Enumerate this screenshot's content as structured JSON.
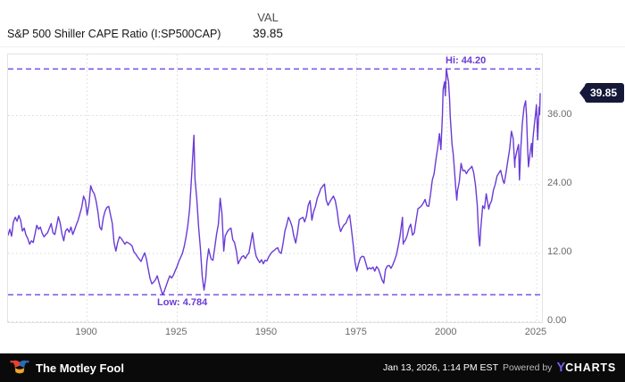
{
  "header": {
    "val_column_label": "VAL",
    "series_name": "S&P 500 Shiller CAPE Ratio (I:SP500CAP)",
    "current_value": "39.85"
  },
  "badge": {
    "label": "39.85",
    "color": "#151838"
  },
  "chart_data": {
    "type": "line",
    "title": "S&P 500 Shiller CAPE Ratio (I:SP500CAP)",
    "xlabel": "",
    "ylabel": "",
    "legend": "none",
    "grid": "dotted",
    "line_color": "#6a3bd6",
    "hilo_color": "#7c55e6",
    "grid_color": "#d8d8d8",
    "x_domain": [
      1878,
      2026.5
    ],
    "y_domain": [
      0,
      46.7
    ],
    "x_ticks": [
      1900,
      1925,
      1950,
      1975,
      2000,
      2025
    ],
    "y_ticks": [
      {
        "value": 36,
        "label": "36.00"
      },
      {
        "value": 24,
        "label": "24.00"
      },
      {
        "value": 12,
        "label": "12.00"
      },
      {
        "value": 0,
        "label": "0.00"
      }
    ],
    "hi": {
      "label": "Hi: 44.20",
      "value": 44.2
    },
    "low": {
      "label": "Low: 4.784",
      "value": 4.784
    },
    "last": {
      "label": "39.85",
      "value": 39.85
    },
    "points": [
      [
        1878,
        15.2
      ],
      [
        1878.5,
        16.2
      ],
      [
        1879,
        15.0
      ],
      [
        1879.5,
        17.5
      ],
      [
        1880,
        18.3
      ],
      [
        1880.5,
        17.6
      ],
      [
        1881,
        18.6
      ],
      [
        1881.5,
        17.8
      ],
      [
        1882,
        15.9
      ],
      [
        1882.5,
        16.4
      ],
      [
        1883,
        15.2
      ],
      [
        1883.5,
        14.6
      ],
      [
        1884,
        13.6
      ],
      [
        1884.5,
        14.2
      ],
      [
        1885,
        13.9
      ],
      [
        1885.5,
        15.4
      ],
      [
        1886,
        16.9
      ],
      [
        1886.5,
        16.2
      ],
      [
        1887,
        16.6
      ],
      [
        1887.5,
        15.5
      ],
      [
        1888,
        14.9
      ],
      [
        1888.5,
        15.3
      ],
      [
        1889,
        15.6
      ],
      [
        1889.5,
        16.4
      ],
      [
        1890,
        17.2
      ],
      [
        1890.5,
        15.6
      ],
      [
        1891,
        15.3
      ],
      [
        1891.5,
        16.8
      ],
      [
        1892,
        18.4
      ],
      [
        1892.5,
        17.3
      ],
      [
        1893,
        15.4
      ],
      [
        1893.5,
        14.2
      ],
      [
        1894,
        15.9
      ],
      [
        1894.5,
        16.3
      ],
      [
        1895,
        15.7
      ],
      [
        1895.5,
        16.6
      ],
      [
        1896,
        15.3
      ],
      [
        1896.5,
        16.1
      ],
      [
        1897,
        17.0
      ],
      [
        1897.5,
        17.8
      ],
      [
        1898,
        18.9
      ],
      [
        1898.5,
        20.1
      ],
      [
        1899,
        22.0
      ],
      [
        1899.5,
        21.2
      ],
      [
        1900,
        18.7
      ],
      [
        1900.5,
        20.5
      ],
      [
        1901,
        23.8
      ],
      [
        1901.5,
        22.9
      ],
      [
        1902,
        22.4
      ],
      [
        1902.5,
        21.1
      ],
      [
        1903,
        19.2
      ],
      [
        1903.5,
        16.6
      ],
      [
        1904,
        16.1
      ],
      [
        1904.5,
        18.2
      ],
      [
        1905,
        19.4
      ],
      [
        1905.5,
        20.0
      ],
      [
        1906,
        20.2
      ],
      [
        1906.5,
        18.7
      ],
      [
        1907,
        17.2
      ],
      [
        1907.5,
        13.8
      ],
      [
        1908,
        12.4
      ],
      [
        1908.5,
        13.9
      ],
      [
        1909,
        14.9
      ],
      [
        1909.5,
        14.6
      ],
      [
        1910,
        14.1
      ],
      [
        1910.5,
        13.6
      ],
      [
        1911,
        14.0
      ],
      [
        1911.5,
        13.8
      ],
      [
        1912,
        13.6
      ],
      [
        1912.5,
        13.3
      ],
      [
        1913,
        12.3
      ],
      [
        1913.5,
        11.9
      ],
      [
        1914,
        11.4
      ],
      [
        1914.5,
        11.0
      ],
      [
        1915,
        10.6
      ],
      [
        1915.5,
        11.4
      ],
      [
        1916,
        12.1
      ],
      [
        1916.5,
        11.0
      ],
      [
        1917,
        9.2
      ],
      [
        1917.5,
        7.6
      ],
      [
        1918,
        6.7
      ],
      [
        1918.5,
        7.0
      ],
      [
        1919,
        7.4
      ],
      [
        1919.5,
        8.1
      ],
      [
        1920,
        6.9
      ],
      [
        1920.5,
        5.8
      ],
      [
        1921,
        4.784
      ],
      [
        1921.5,
        5.5
      ],
      [
        1922,
        6.4
      ],
      [
        1922.5,
        7.3
      ],
      [
        1923,
        8.1
      ],
      [
        1923.5,
        7.7
      ],
      [
        1924,
        8.2
      ],
      [
        1924.5,
        9.0
      ],
      [
        1925,
        9.7
      ],
      [
        1925.5,
        10.6
      ],
      [
        1926,
        11.3
      ],
      [
        1926.5,
        12.0
      ],
      [
        1927,
        13.2
      ],
      [
        1927.5,
        14.8
      ],
      [
        1928,
        16.8
      ],
      [
        1928.5,
        19.8
      ],
      [
        1929,
        25.0
      ],
      [
        1929.7,
        32.6
      ],
      [
        1930,
        25.0
      ],
      [
        1930.5,
        21.5
      ],
      [
        1931,
        16.7
      ],
      [
        1931.5,
        13.0
      ],
      [
        1932,
        8.0
      ],
      [
        1932.5,
        5.6
      ],
      [
        1933,
        7.8
      ],
      [
        1933.3,
        10.5
      ],
      [
        1933.8,
        12.8
      ],
      [
        1934,
        12.2
      ],
      [
        1934.5,
        11.0
      ],
      [
        1935,
        10.8
      ],
      [
        1935.5,
        13.0
      ],
      [
        1936,
        15.4
      ],
      [
        1936.5,
        17.1
      ],
      [
        1937,
        21.6
      ],
      [
        1937.5,
        18.9
      ],
      [
        1938,
        12.4
      ],
      [
        1938.4,
        15.0
      ],
      [
        1939,
        15.8
      ],
      [
        1939.5,
        16.2
      ],
      [
        1940,
        16.4
      ],
      [
        1940.5,
        14.4
      ],
      [
        1941,
        13.9
      ],
      [
        1941.5,
        12.4
      ],
      [
        1942,
        10.2
      ],
      [
        1942.5,
        10.8
      ],
      [
        1943,
        11.4
      ],
      [
        1943.5,
        11.6
      ],
      [
        1944,
        11.1
      ],
      [
        1944.5,
        11.7
      ],
      [
        1945,
        12.1
      ],
      [
        1945.5,
        13.8
      ],
      [
        1946,
        15.6
      ],
      [
        1946.5,
        13.2
      ],
      [
        1947,
        11.5
      ],
      [
        1947.5,
        10.9
      ],
      [
        1948,
        10.4
      ],
      [
        1948.5,
        10.9
      ],
      [
        1949,
        10.2
      ],
      [
        1949.5,
        10.8
      ],
      [
        1950,
        10.7
      ],
      [
        1950.5,
        11.4
      ],
      [
        1951,
        11.9
      ],
      [
        1951.5,
        12.3
      ],
      [
        1952,
        12.5
      ],
      [
        1952.5,
        12.8
      ],
      [
        1953,
        13.0
      ],
      [
        1953.5,
        12.2
      ],
      [
        1954,
        12.0
      ],
      [
        1954.5,
        13.8
      ],
      [
        1955,
        15.9
      ],
      [
        1955.5,
        17.0
      ],
      [
        1956,
        18.3
      ],
      [
        1956.5,
        17.6
      ],
      [
        1957,
        16.7
      ],
      [
        1957.5,
        15.0
      ],
      [
        1958,
        13.8
      ],
      [
        1958.5,
        15.6
      ],
      [
        1959,
        17.9
      ],
      [
        1959.5,
        18.1
      ],
      [
        1960,
        18.3
      ],
      [
        1960.5,
        17.5
      ],
      [
        1961,
        18.5
      ],
      [
        1961.5,
        20.4
      ],
      [
        1962,
        21.2
      ],
      [
        1962.5,
        17.8
      ],
      [
        1963,
        19.3
      ],
      [
        1963.5,
        20.2
      ],
      [
        1964,
        21.6
      ],
      [
        1964.5,
        22.4
      ],
      [
        1965,
        23.3
      ],
      [
        1965.5,
        23.7
      ],
      [
        1966,
        24.1
      ],
      [
        1966.5,
        21.3
      ],
      [
        1967,
        20.4
      ],
      [
        1967.5,
        21.0
      ],
      [
        1968,
        21.5
      ],
      [
        1968.5,
        22.0
      ],
      [
        1969,
        21.2
      ],
      [
        1969.5,
        19.5
      ],
      [
        1970,
        17.1
      ],
      [
        1970.5,
        15.8
      ],
      [
        1971,
        16.5
      ],
      [
        1971.5,
        17.0
      ],
      [
        1972,
        17.3
      ],
      [
        1972.5,
        18.1
      ],
      [
        1973,
        18.7
      ],
      [
        1973.5,
        16.2
      ],
      [
        1974,
        13.5
      ],
      [
        1974.5,
        10.5
      ],
      [
        1975,
        8.9
      ],
      [
        1975.5,
        10.2
      ],
      [
        1976,
        11.2
      ],
      [
        1976.5,
        11.5
      ],
      [
        1977,
        11.4
      ],
      [
        1977.5,
        10.3
      ],
      [
        1978,
        9.2
      ],
      [
        1978.5,
        9.5
      ],
      [
        1979,
        9.3
      ],
      [
        1979.5,
        9.6
      ],
      [
        1980,
        8.9
      ],
      [
        1980.5,
        9.7
      ],
      [
        1981,
        9.3
      ],
      [
        1981.5,
        8.4
      ],
      [
        1982,
        7.4
      ],
      [
        1982.5,
        6.8
      ],
      [
        1983,
        9.2
      ],
      [
        1983.5,
        9.8
      ],
      [
        1984,
        9.9
      ],
      [
        1984.5,
        9.4
      ],
      [
        1985,
        10.0
      ],
      [
        1985.5,
        10.8
      ],
      [
        1986,
        11.7
      ],
      [
        1986.5,
        13.2
      ],
      [
        1987,
        14.9
      ],
      [
        1987.7,
        18.3
      ],
      [
        1987.9,
        13.6
      ],
      [
        1988,
        13.9
      ],
      [
        1988.5,
        14.3
      ],
      [
        1989,
        15.1
      ],
      [
        1989.5,
        16.4
      ],
      [
        1990,
        17.1
      ],
      [
        1990.5,
        15.2
      ],
      [
        1991,
        15.6
      ],
      [
        1991.5,
        17.8
      ],
      [
        1992,
        19.8
      ],
      [
        1992.5,
        20.0
      ],
      [
        1993,
        20.3
      ],
      [
        1993.5,
        20.8
      ],
      [
        1994,
        21.4
      ],
      [
        1994.5,
        20.3
      ],
      [
        1995,
        20.2
      ],
      [
        1995.5,
        22.3
      ],
      [
        1996,
        24.8
      ],
      [
        1996.5,
        25.9
      ],
      [
        1997,
        28.3
      ],
      [
        1997.5,
        30.4
      ],
      [
        1998,
        32.9
      ],
      [
        1998.4,
        30.1
      ],
      [
        1998.8,
        36.0
      ],
      [
        1999,
        40.6
      ],
      [
        1999.4,
        41.9
      ],
      [
        1999.6,
        39.5
      ],
      [
        1999.9,
        44.2
      ],
      [
        2000.2,
        43.0
      ],
      [
        2000.5,
        42.0
      ],
      [
        2000.8,
        39.0
      ],
      [
        2001,
        35.8
      ],
      [
        2001.5,
        31.0
      ],
      [
        2001.8,
        29.5
      ],
      [
        2002,
        28.0
      ],
      [
        2002.5,
        23.5
      ],
      [
        2002.8,
        21.3
      ],
      [
        2003,
        22.9
      ],
      [
        2003.5,
        24.5
      ],
      [
        2004,
        27.7
      ],
      [
        2004.5,
        26.4
      ],
      [
        2005,
        26.5
      ],
      [
        2005.5,
        25.9
      ],
      [
        2006,
        26.5
      ],
      [
        2006.5,
        26.8
      ],
      [
        2007,
        27.2
      ],
      [
        2007.5,
        26.1
      ],
      [
        2008,
        24.0
      ],
      [
        2008.5,
        20.5
      ],
      [
        2008.9,
        15.2
      ],
      [
        2009.2,
        13.3
      ],
      [
        2009.5,
        16.4
      ],
      [
        2009.9,
        19.5
      ],
      [
        2010,
        20.3
      ],
      [
        2010.5,
        19.8
      ],
      [
        2011,
        22.4
      ],
      [
        2011.7,
        19.7
      ],
      [
        2012,
        20.5
      ],
      [
        2012.5,
        21.2
      ],
      [
        2013,
        23.0
      ],
      [
        2013.5,
        24.0
      ],
      [
        2014,
        25.5
      ],
      [
        2014.5,
        26.0
      ],
      [
        2015,
        26.5
      ],
      [
        2015.7,
        24.6
      ],
      [
        2016,
        24.2
      ],
      [
        2016.5,
        26.0
      ],
      [
        2017,
        28.1
      ],
      [
        2017.5,
        30.2
      ],
      [
        2018,
        33.3
      ],
      [
        2018.5,
        32.0
      ],
      [
        2018.95,
        27.0
      ],
      [
        2019,
        28.3
      ],
      [
        2019.5,
        29.8
      ],
      [
        2020,
        31.0
      ],
      [
        2020.25,
        24.8
      ],
      [
        2020.6,
        30.0
      ],
      [
        2020.9,
        33.1
      ],
      [
        2021,
        34.5
      ],
      [
        2021.5,
        37.5
      ],
      [
        2021.95,
        38.6
      ],
      [
        2022.2,
        36.0
      ],
      [
        2022.5,
        30.5
      ],
      [
        2022.75,
        27.1
      ],
      [
        2023,
        28.5
      ],
      [
        2023.4,
        30.5
      ],
      [
        2023.6,
        31.2
      ],
      [
        2023.8,
        28.8
      ],
      [
        2024,
        32.0
      ],
      [
        2024.4,
        34.5
      ],
      [
        2024.7,
        36.3
      ],
      [
        2024.95,
        37.9
      ],
      [
        2025.1,
        35.5
      ],
      [
        2025.3,
        31.8
      ],
      [
        2025.5,
        35.0
      ],
      [
        2025.7,
        37.5
      ],
      [
        2025.85,
        36.2
      ],
      [
        2026,
        39.85
      ]
    ]
  },
  "footer": {
    "brand": "The Motley Fool",
    "timestamp": "Jan 13, 2026, 1:14 PM EST",
    "powered_by": "Powered by",
    "ycharts": {
      "y": "Y",
      "charts": "CHARTS"
    }
  }
}
